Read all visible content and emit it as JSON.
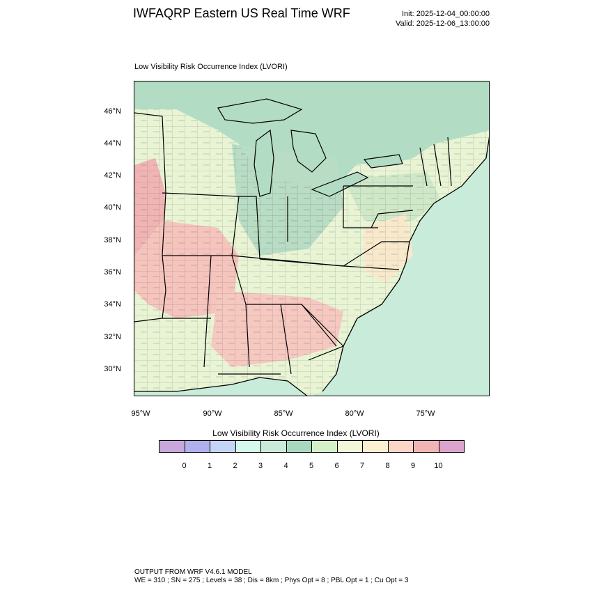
{
  "header": {
    "title": "IWFAQRP Eastern US Real Time WRF",
    "init": "Init: 2025-12-04_00:00:00",
    "valid": "Valid: 2025-12-06_13:00:00"
  },
  "map": {
    "subtitle": "Low Visibility Risk Occurrence Index   (LVORI)",
    "projection": "lambert-conformal",
    "lat_ticks": [
      "46°N",
      "44°N",
      "42°N",
      "40°N",
      "38°N",
      "36°N",
      "34°N",
      "32°N",
      "30°N"
    ],
    "lon_ticks": [
      "95°W",
      "90°W",
      "85°W",
      "80°W",
      "75°W"
    ],
    "state_labels": [],
    "colors": {
      "ocean": "#c8ecd9",
      "lake": "#b2dcc4",
      "boundary": "#000000"
    }
  },
  "colorbar": {
    "title": "Low Visibility Risk Occurrence Index  (LVORI)",
    "labels": [
      "0",
      "1",
      "2",
      "3",
      "4",
      "5",
      "6",
      "7",
      "8",
      "9",
      "10"
    ],
    "colors": [
      "#c8a8dc",
      "#b0b0ec",
      "#c4d4f4",
      "#d4f8ec",
      "#c8ecd9",
      "#a8d8c0",
      "#d4f0c8",
      "#f0f8d8",
      "#fcf0d0",
      "#fcd4c8",
      "#f0b4b4",
      "#dca4cc"
    ]
  },
  "footer": {
    "line1": "OUTPUT FROM WRF V4.6.1 MODEL",
    "line2": "WE = 310 ; SN = 275 ; Levels = 38 ; Dis = 8km ; Phys Opt = 8 ; PBL Opt = 1 ; Cu Opt = 3"
  }
}
